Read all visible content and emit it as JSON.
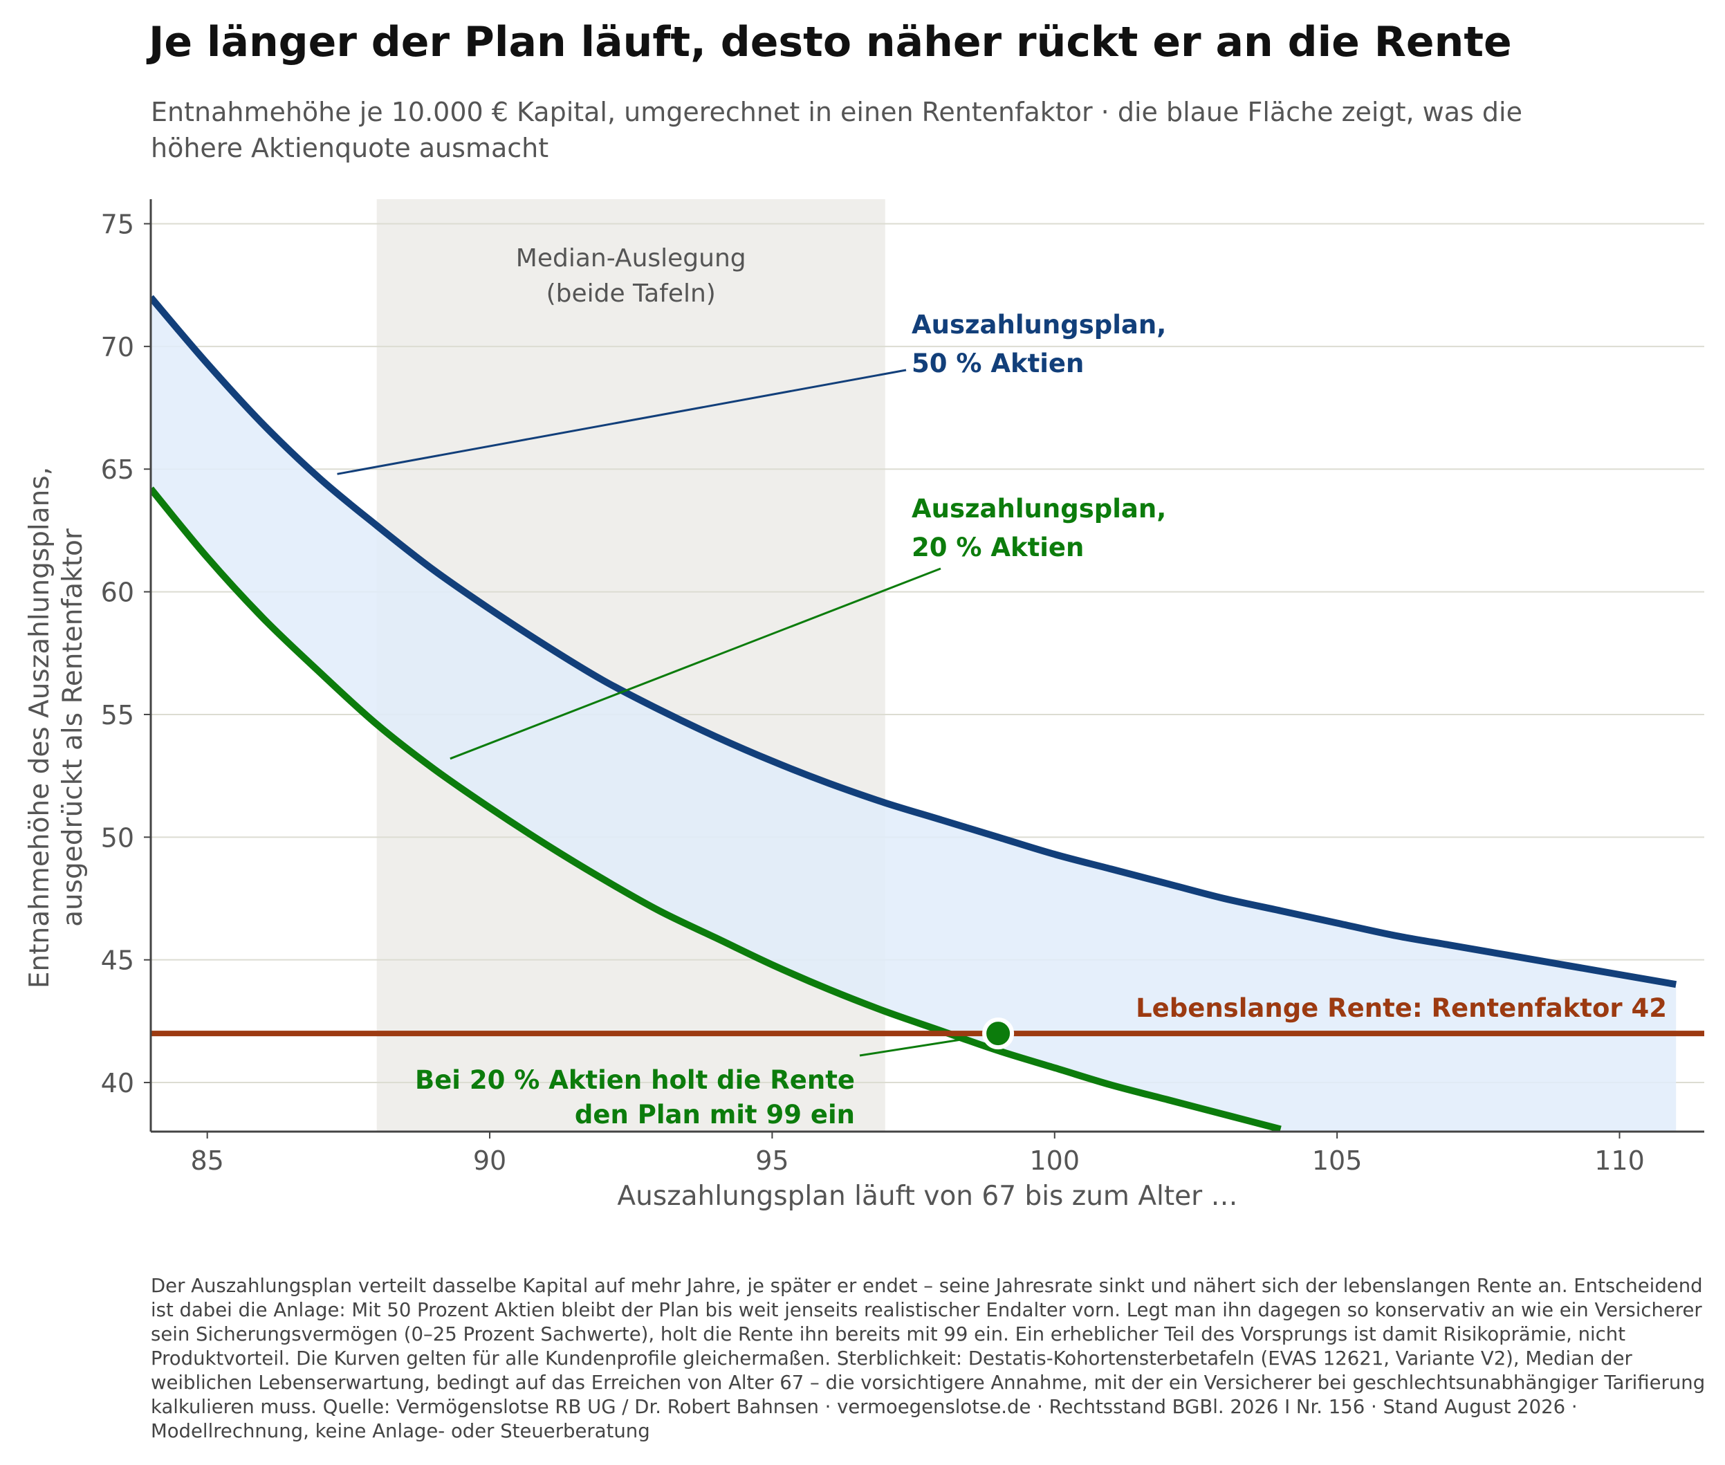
{
  "chart_data": {
    "type": "line",
    "title": "Je länger der Plan läuft, desto näher rückt er an die Rente",
    "subtitle": "Entnahmehöhe je 10.000 € Kapital, umgerechnet in einen Rentenfaktor · die blaue Fläche zeigt, was die höhere Aktienquote ausmacht",
    "xlabel": "Auszahlungsplan läuft von 67 bis zum Alter …",
    "ylabel_line1": "Entnahmehöhe des Auszahlungsplans,",
    "ylabel_line2": "ausgedrückt als Rentenfaktor",
    "xlim": [
      84,
      111.5
    ],
    "ylim": [
      38,
      76
    ],
    "x_ticks": [
      85,
      90,
      95,
      100,
      105,
      110
    ],
    "y_ticks": [
      40,
      45,
      50,
      55,
      60,
      65,
      70,
      75
    ],
    "grid": "horizontal",
    "series": [
      {
        "label": "Auszahlungsplan, 50 % Aktien",
        "label_line1": "Auszahlungsplan,",
        "label_line2": "50 % Aktien",
        "color": "#123f7a",
        "x": [
          84,
          85,
          86,
          87,
          88,
          89,
          90,
          91,
          92,
          93,
          94,
          95,
          96,
          97,
          98,
          99,
          100,
          101,
          102,
          103,
          104,
          105,
          106,
          107,
          108,
          109,
          110,
          111
        ],
        "values": [
          72.0,
          69.3,
          66.8,
          64.6,
          62.7,
          60.9,
          59.3,
          57.8,
          56.4,
          55.2,
          54.1,
          53.1,
          52.2,
          51.4,
          50.7,
          50.0,
          49.3,
          48.7,
          48.1,
          47.5,
          47.0,
          46.5,
          46.0,
          45.6,
          45.2,
          44.8,
          44.4,
          44.0
        ]
      },
      {
        "label": "Auszahlungsplan, 20 % Aktien",
        "label_line1": "Auszahlungsplan,",
        "label_line2": "20 % Aktien",
        "color": "#0c7c0c",
        "x": [
          84,
          85,
          86,
          87,
          88,
          89,
          90,
          91,
          92,
          93,
          94,
          95,
          96,
          97,
          98,
          99,
          100,
          101,
          102,
          103,
          104
        ],
        "values": [
          64.2,
          61.4,
          58.9,
          56.7,
          54.6,
          52.8,
          51.2,
          49.7,
          48.3,
          47.0,
          45.9,
          44.8,
          43.8,
          42.9,
          42.1,
          41.3,
          40.6,
          39.9,
          39.3,
          38.7,
          38.1
        ]
      }
    ],
    "reference_line": {
      "label": "Lebenslange Rente: Rentenfaktor 42",
      "value": 42,
      "color": "#9c3a11"
    },
    "shaded_region": {
      "label_line1": "Median-Auslegung",
      "label_line2": "(beide Tafeln)",
      "x_from": 88,
      "x_to": 97,
      "color": "#efeeeb"
    },
    "fill_between_color": "#e1ecfa",
    "marker": {
      "x": 99,
      "y": 42,
      "color": "#0c7c0c",
      "label_line1": "Bei 20 % Aktien holt die Rente",
      "label_line2": "den Plan mit 99 ein"
    }
  },
  "footnote": "Der Auszahlungsplan verteilt dasselbe Kapital auf mehr Jahre, je später er endet – seine Jahresrate sinkt und nähert sich der lebenslangen Rente an. Entscheidend ist dabei die Anlage: Mit 50 Prozent Aktien bleibt der Plan bis weit jenseits realistischer Endalter vorn. Legt man ihn dagegen so konservativ an wie ein Versicherer sein Sicherungsvermögen (0–25 Prozent Sachwerte), holt die Rente ihn bereits mit 99 ein. Ein erheblicher Teil des Vorsprungs ist damit Risikoprämie, nicht Produktvorteil. Die Kurven gelten für alle Kundenprofile gleichermaßen. Sterblichkeit: Destatis-Kohortensterbetafeln (EVAS 12621, Variante V2), Median der weiblichen Lebenserwartung, bedingt auf das Erreichen von Alter 67 – die vorsichtigere Annahme, mit der ein Versicherer bei geschlechtsunabhängiger Tarifierung kalkulieren muss. Quelle: Vermögenslotse RB UG / Dr. Robert Bahnsen · vermoegenslotse.de · Rechtsstand BGBl. 2026 I Nr. 156 · Stand August 2026 · Modellrechnung, keine Anlage- oder Steuerberatung"
}
